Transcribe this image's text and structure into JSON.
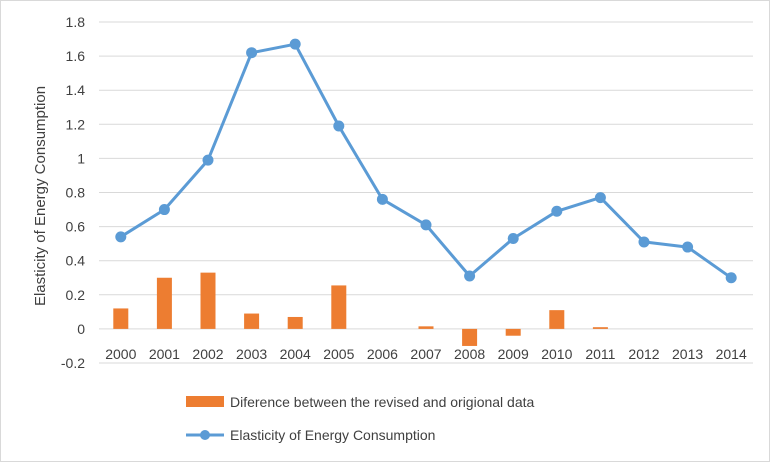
{
  "chart_data": {
    "type": "bar+line",
    "title": "",
    "xlabel": "",
    "ylabel": "Elasticity of Energy Consumption",
    "ylim": [
      -0.2,
      1.8
    ],
    "ytick_step": 0.2,
    "yticks": [
      "-0.2",
      "0",
      "0.2",
      "0.4",
      "0.6",
      "0.8",
      "1",
      "1.2",
      "1.4",
      "1.6",
      "1.8"
    ],
    "grid": true,
    "legend_position": "bottom",
    "categories": [
      "2000",
      "2001",
      "2002",
      "2003",
      "2004",
      "2005",
      "2006",
      "2007",
      "2008",
      "2009",
      "2010",
      "2011",
      "2012",
      "2013",
      "2014"
    ],
    "series": [
      {
        "name": "Diference between the revised and origional data",
        "kind": "bar",
        "color": "#ED7D31",
        "values": [
          0.12,
          0.3,
          0.33,
          0.09,
          0.07,
          0.255,
          0,
          0.015,
          -0.1,
          -0.04,
          0.11,
          0.01,
          0,
          0,
          0
        ]
      },
      {
        "name": "Elasticity of Energy Consumption",
        "kind": "line",
        "color": "#5B9BD5",
        "values": [
          0.54,
          0.7,
          0.99,
          1.62,
          1.67,
          1.19,
          0.76,
          0.61,
          0.31,
          0.53,
          0.69,
          0.77,
          0.51,
          0.48,
          0.3
        ]
      }
    ]
  }
}
